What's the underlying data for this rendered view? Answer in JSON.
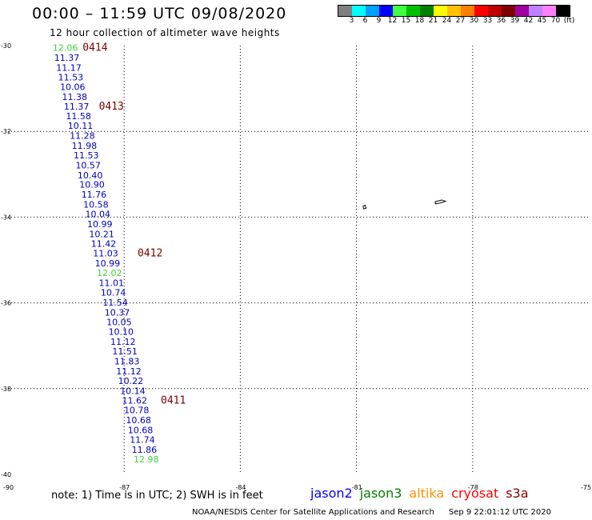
{
  "header": {
    "title": "00:00 – 11:59 UTC 09/08/2020",
    "subtitle": "12 hour collection of altimeter wave heights"
  },
  "legend": {
    "swatches": [
      "#808080",
      "#00ffff",
      "#00a0ff",
      "#0000ff",
      "#40ff40",
      "#00c000",
      "#008000",
      "#ffff00",
      "#ffc000",
      "#ff8000",
      "#ff0000",
      "#c00000",
      "#800000",
      "#a000a0",
      "#c080ff",
      "#ff80ff",
      "#000000"
    ],
    "labels": [
      "3",
      "6",
      "9",
      "12",
      "15",
      "18",
      "21",
      "24",
      "27",
      "30",
      "33",
      "36",
      "39",
      "42",
      "45",
      "70",
      "(ft)"
    ]
  },
  "map": {
    "lat_range": [
      -40,
      -30
    ],
    "lon_range": [
      -90,
      -75
    ],
    "lat_ticks": [
      -30,
      -32,
      -34,
      -36,
      -38,
      -40
    ],
    "lon_ticks": [
      -90,
      -87,
      -84,
      -81,
      -78,
      -75
    ],
    "observations": [
      {
        "lat": -30.05,
        "lon": -88.52,
        "swh": "12.06",
        "color": "#40d040"
      },
      {
        "lat": -30.28,
        "lon": -88.48,
        "swh": "11.37",
        "color": "#0000c0"
      },
      {
        "lat": -30.51,
        "lon": -88.43,
        "swh": "11.17",
        "color": "#0000c0"
      },
      {
        "lat": -30.74,
        "lon": -88.38,
        "swh": "11.53",
        "color": "#0000c0"
      },
      {
        "lat": -30.96,
        "lon": -88.33,
        "swh": "10.06",
        "color": "#0000c0"
      },
      {
        "lat": -31.19,
        "lon": -88.28,
        "swh": "11.38",
        "color": "#0000c0"
      },
      {
        "lat": -31.42,
        "lon": -88.23,
        "swh": "11.37",
        "color": "#0000c0"
      },
      {
        "lat": -31.64,
        "lon": -88.18,
        "swh": "11.58",
        "color": "#0000c0"
      },
      {
        "lat": -31.87,
        "lon": -88.13,
        "swh": "10.11",
        "color": "#0000c0"
      },
      {
        "lat": -32.1,
        "lon": -88.08,
        "swh": "11.28",
        "color": "#0000c0"
      },
      {
        "lat": -32.33,
        "lon": -88.03,
        "swh": "11.98",
        "color": "#0000c0"
      },
      {
        "lat": -32.56,
        "lon": -87.98,
        "swh": "11.53",
        "color": "#0000c0"
      },
      {
        "lat": -32.79,
        "lon": -87.93,
        "swh": "10.57",
        "color": "#0000c0"
      },
      {
        "lat": -33.02,
        "lon": -87.88,
        "swh": "10.40",
        "color": "#0000c0"
      },
      {
        "lat": -33.24,
        "lon": -87.83,
        "swh": "10.90",
        "color": "#0000c0"
      },
      {
        "lat": -33.47,
        "lon": -87.78,
        "swh": "11.76",
        "color": "#0000c0"
      },
      {
        "lat": -33.7,
        "lon": -87.73,
        "swh": "10.58",
        "color": "#0000c0"
      },
      {
        "lat": -33.93,
        "lon": -87.68,
        "swh": "10.04",
        "color": "#0000c0"
      },
      {
        "lat": -34.16,
        "lon": -87.63,
        "swh": "10.99",
        "color": "#0000c0"
      },
      {
        "lat": -34.39,
        "lon": -87.58,
        "swh": "10.21",
        "color": "#0000c0"
      },
      {
        "lat": -34.62,
        "lon": -87.53,
        "swh": "11.42",
        "color": "#0000c0"
      },
      {
        "lat": -34.84,
        "lon": -87.48,
        "swh": "11.03",
        "color": "#0000c0"
      },
      {
        "lat": -35.07,
        "lon": -87.43,
        "swh": "10.99",
        "color": "#0000c0"
      },
      {
        "lat": -35.3,
        "lon": -87.38,
        "swh": "12.02",
        "color": "#40d040"
      },
      {
        "lat": -35.53,
        "lon": -87.33,
        "swh": "11.01",
        "color": "#0000c0"
      },
      {
        "lat": -35.76,
        "lon": -87.28,
        "swh": "10.74",
        "color": "#0000c0"
      },
      {
        "lat": -35.99,
        "lon": -87.23,
        "swh": "11.54",
        "color": "#0000c0"
      },
      {
        "lat": -36.22,
        "lon": -87.18,
        "swh": "10.37",
        "color": "#0000c0"
      },
      {
        "lat": -36.45,
        "lon": -87.13,
        "swh": "10.05",
        "color": "#0000c0"
      },
      {
        "lat": -36.67,
        "lon": -87.08,
        "swh": "10.10",
        "color": "#0000c0"
      },
      {
        "lat": -36.9,
        "lon": -87.03,
        "swh": "11.12",
        "color": "#0000c0"
      },
      {
        "lat": -37.13,
        "lon": -86.98,
        "swh": "11.51",
        "color": "#0000c0"
      },
      {
        "lat": -37.36,
        "lon": -86.93,
        "swh": "11.83",
        "color": "#0000c0"
      },
      {
        "lat": -37.59,
        "lon": -86.88,
        "swh": "11.12",
        "color": "#0000c0"
      },
      {
        "lat": -37.82,
        "lon": -86.83,
        "swh": "10.22",
        "color": "#0000c0"
      },
      {
        "lat": -38.05,
        "lon": -86.78,
        "swh": "10.14",
        "color": "#0000c0"
      },
      {
        "lat": -38.27,
        "lon": -86.73,
        "swh": "11.62",
        "color": "#0000c0"
      },
      {
        "lat": -38.5,
        "lon": -86.68,
        "swh": "10.78",
        "color": "#0000c0"
      },
      {
        "lat": -38.73,
        "lon": -86.63,
        "swh": "10.68",
        "color": "#0000c0"
      },
      {
        "lat": -38.96,
        "lon": -86.58,
        "swh": "10.68",
        "color": "#0000c0"
      },
      {
        "lat": -39.19,
        "lon": -86.53,
        "swh": "11.74",
        "color": "#0000c0"
      },
      {
        "lat": -39.42,
        "lon": -86.48,
        "swh": "11.86",
        "color": "#0000c0"
      },
      {
        "lat": -39.65,
        "lon": -86.43,
        "swh": "12.98",
        "color": "#40d040"
      }
    ],
    "pass_labels": [
      {
        "label": "0414",
        "lat": -30.05,
        "lon": -87.75
      },
      {
        "label": "0413",
        "lat": -31.42,
        "lon": -87.33
      },
      {
        "label": "0412",
        "lat": -34.84,
        "lon": -86.33
      },
      {
        "label": "0411",
        "lat": -38.27,
        "lon": -85.73
      }
    ],
    "islands": [
      {
        "name": "island-left",
        "points": [
          [
            -80.78,
            -33.72
          ],
          [
            -80.75,
            -33.79
          ],
          [
            -80.81,
            -33.81
          ],
          [
            -80.83,
            -33.75
          ]
        ]
      },
      {
        "name": "island-right",
        "points": [
          [
            -78.97,
            -33.64
          ],
          [
            -78.8,
            -33.6
          ],
          [
            -78.7,
            -33.63
          ],
          [
            -78.84,
            -33.67
          ],
          [
            -78.96,
            -33.69
          ]
        ]
      }
    ]
  },
  "footer": {
    "note": "note: 1) Time is in UTC; 2) SWH is in feet",
    "satellites": [
      {
        "name": "jason2",
        "color": "#0000ff"
      },
      {
        "name": "jason3",
        "color": "#008000"
      },
      {
        "name": "altika",
        "color": "#ff9000"
      },
      {
        "name": "cryosat",
        "color": "#ff0000"
      },
      {
        "name": "s3a",
        "color": "#800000"
      }
    ],
    "credit": "NOAA/NESDIS Center for Satellite Applications and Research",
    "timestamp": "Sep  9 22:01:12 UTC 2020"
  }
}
